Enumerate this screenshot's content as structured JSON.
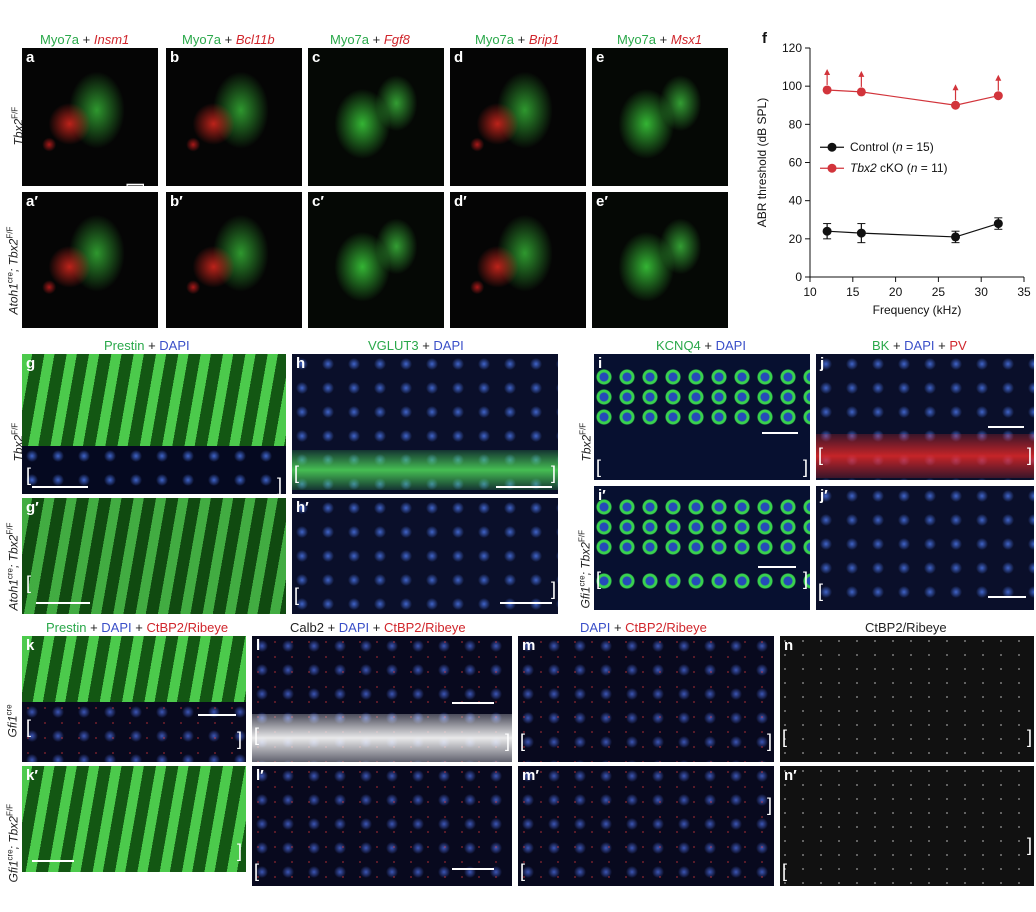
{
  "top_headers": [
    {
      "key": "a",
      "parts": [
        {
          "t": "Myo7a",
          "c": "g"
        },
        {
          "t": " + ",
          "c": "k"
        },
        {
          "t": "Insm1",
          "c": "rit"
        }
      ]
    },
    {
      "key": "b",
      "parts": [
        {
          "t": "Myo7a",
          "c": "g"
        },
        {
          "t": " + ",
          "c": "k"
        },
        {
          "t": "Bcl11b",
          "c": "rit"
        }
      ]
    },
    {
      "key": "c",
      "parts": [
        {
          "t": "Myo7a",
          "c": "g"
        },
        {
          "t": " + ",
          "c": "k"
        },
        {
          "t": "Fgf8",
          "c": "rit"
        }
      ]
    },
    {
      "key": "d",
      "parts": [
        {
          "t": "Myo7a",
          "c": "g"
        },
        {
          "t": " + ",
          "c": "k"
        },
        {
          "t": "Brip1",
          "c": "rit"
        }
      ]
    },
    {
      "key": "e",
      "parts": [
        {
          "t": "Myo7a",
          "c": "g"
        },
        {
          "t": " + ",
          "c": "k"
        },
        {
          "t": "Msx1",
          "c": "rit"
        }
      ]
    }
  ],
  "mid_headers": {
    "gh": [
      {
        "t": "Prestin",
        "c": "g"
      },
      {
        "t": " + ",
        "c": "k"
      },
      {
        "t": "DAPI",
        "c": "b"
      }
    ],
    "h": [
      {
        "t": "VGLUT3",
        "c": "g"
      },
      {
        "t": " + ",
        "c": "k"
      },
      {
        "t": "DAPI",
        "c": "b"
      }
    ],
    "i": [
      {
        "t": "KCNQ4",
        "c": "g"
      },
      {
        "t": " + ",
        "c": "k"
      },
      {
        "t": "DAPI",
        "c": "b"
      }
    ],
    "j": [
      {
        "t": "BK",
        "c": "g"
      },
      {
        "t": " + ",
        "c": "k"
      },
      {
        "t": "DAPI",
        "c": "b"
      },
      {
        "t": " + ",
        "c": "k"
      },
      {
        "t": "PV",
        "c": "r"
      }
    ]
  },
  "bottom_headers": {
    "k": [
      {
        "t": "Prestin",
        "c": "g"
      },
      {
        "t": " + ",
        "c": "k"
      },
      {
        "t": "DAPI",
        "c": "b"
      },
      {
        "t": " + ",
        "c": "k"
      },
      {
        "t": "CtBP2/Ribeye",
        "c": "r"
      }
    ],
    "l": [
      {
        "t": "Calb2",
        "c": "k"
      },
      {
        "t": " + ",
        "c": "k"
      },
      {
        "t": "DAPI",
        "c": "b"
      },
      {
        "t": " + ",
        "c": "k"
      },
      {
        "t": "CtBP2/Ribeye",
        "c": "r"
      }
    ],
    "m": [
      {
        "t": "DAPI",
        "c": "b"
      },
      {
        "t": " + ",
        "c": "k"
      },
      {
        "t": "CtBP2/Ribeye",
        "c": "r"
      }
    ],
    "n": [
      {
        "t": "CtBP2/Ribeye",
        "c": "k"
      }
    ]
  },
  "panel_labels": {
    "a": "a",
    "b": "b",
    "c": "c",
    "d": "d",
    "e": "e",
    "a2": "a′",
    "b2": "b′",
    "c2": "c′",
    "d2": "d′",
    "e2": "e′",
    "g": "g",
    "h": "h",
    "i": "i",
    "j": "j",
    "g2": "g′",
    "h2": "h′",
    "i2": "i′",
    "j2": "j′",
    "k": "k",
    "l": "l",
    "m": "m",
    "n": "n",
    "k2": "k′",
    "l2": "l′",
    "m2": "m′",
    "n2": "n′",
    "f": "f"
  },
  "row_labels": {
    "top1": {
      "main": "Tbx2",
      "sup": "F/F"
    },
    "top2": {
      "pre": "Atoh1",
      "presup": "cre",
      "mid": "; Tbx2",
      "sup": "F/F"
    },
    "mid1": {
      "main": "Tbx2",
      "sup": "F/F"
    },
    "mid2": {
      "pre": "Atoh1",
      "presup": "cre",
      "mid": "; Tbx2",
      "sup": "F/F"
    },
    "midr1": {
      "main": "Tbx2",
      "sup": "F/F"
    },
    "midr2": {
      "pre": "Gfi1",
      "presup": "cre",
      "mid": "; Tbx2",
      "sup": "F/F"
    },
    "bot1": {
      "pre": "Gfi1",
      "presup": "cre"
    },
    "bot2": {
      "pre": "Gfi1",
      "presup": "cre",
      "mid": "; Tbx2",
      "sup": "F/F"
    }
  },
  "chart_data": {
    "type": "line",
    "ylabel": "ABR threshold (dB SPL)",
    "xlabel": "Frequency (kHz)",
    "xlim": [
      10,
      35
    ],
    "ylim": [
      0,
      120
    ],
    "xticks": [
      10,
      15,
      20,
      25,
      30,
      35
    ],
    "yticks": [
      0,
      20,
      40,
      60,
      80,
      100,
      120
    ],
    "legend_position": "middle-right",
    "series": [
      {
        "name": "Control (n = 15)",
        "legend_parts": [
          "Control (",
          "n",
          " = 15)"
        ],
        "color": "#111111",
        "x": [
          12,
          16,
          27,
          32
        ],
        "y": [
          24,
          23,
          21,
          28
        ],
        "err": [
          4,
          5,
          3,
          3
        ],
        "arrows": false
      },
      {
        "name": "Tbx2 cKO (n = 11)",
        "legend_parts": [
          "Tbx2",
          " cKO (",
          "n",
          " = 11)"
        ],
        "color": "#d2343b",
        "x": [
          12,
          16,
          27,
          32
        ],
        "y": [
          98,
          97,
          90,
          95
        ],
        "err": [
          0,
          0,
          0,
          0
        ],
        "arrows": true
      }
    ]
  }
}
